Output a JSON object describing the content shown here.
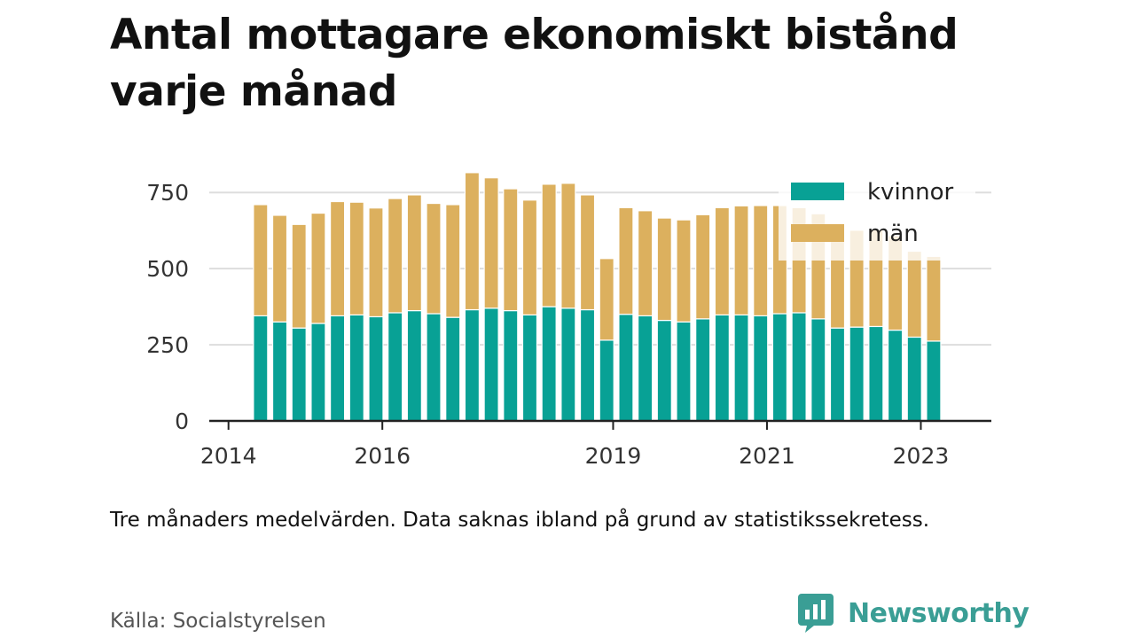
{
  "title": "Antal mottagare ekonomiskt bistånd varje månad",
  "note": "Tre månaders medelvärden. Data saknas ibland på grund av statistikssekretess.",
  "source": "Källa: Socialstyrelsen",
  "brand": {
    "name": "Newsworthy",
    "color": "#3a9e95"
  },
  "colors": {
    "kvinnor": "#08a195",
    "man": "#dcb05e",
    "grid": "#dddddd",
    "axis": "#222222"
  },
  "chart_data": {
    "type": "bar",
    "stacked": true,
    "title": "Antal mottagare ekonomiskt bistånd varje månad",
    "ylim": [
      0,
      800
    ],
    "xlim": [
      "2013-10",
      "2023-12"
    ],
    "yticks": [
      0,
      250,
      500,
      750
    ],
    "xticks": [
      "2014",
      "2016",
      "2019",
      "2021",
      "2023"
    ],
    "grid": true,
    "legend": "top-right",
    "x": [
      "2014-06",
      "2014-09",
      "2014-12",
      "2015-03",
      "2015-06",
      "2015-09",
      "2015-12",
      "2016-03",
      "2016-06",
      "2016-09",
      "2016-12",
      "2017-03",
      "2017-06",
      "2017-09",
      "2017-12",
      "2018-03",
      "2018-06",
      "2018-09",
      "2018-12",
      "2019-03",
      "2019-06",
      "2019-09",
      "2019-12",
      "2020-03",
      "2020-06",
      "2020-09",
      "2020-12",
      "2021-03",
      "2021-06",
      "2021-09",
      "2021-12",
      "2022-03",
      "2022-06",
      "2022-09",
      "2022-12",
      "2023-03"
    ],
    "series": [
      {
        "name": "kvinnor",
        "color": "#08a195",
        "values": [
          345,
          325,
          305,
          320,
          345,
          348,
          342,
          355,
          362,
          352,
          340,
          365,
          370,
          362,
          348,
          375,
          370,
          365,
          265,
          350,
          345,
          330,
          325,
          335,
          348,
          348,
          345,
          352,
          355,
          335,
          305,
          308,
          310,
          298,
          275,
          262
        ]
      },
      {
        "name": "män",
        "color": "#dcb05e",
        "values": [
          365,
          350,
          340,
          362,
          375,
          370,
          357,
          375,
          380,
          362,
          370,
          450,
          428,
          400,
          377,
          402,
          410,
          377,
          268,
          350,
          345,
          336,
          335,
          342,
          352,
          358,
          362,
          355,
          345,
          345,
          325,
          318,
          318,
          310,
          282,
          278
        ]
      }
    ]
  }
}
